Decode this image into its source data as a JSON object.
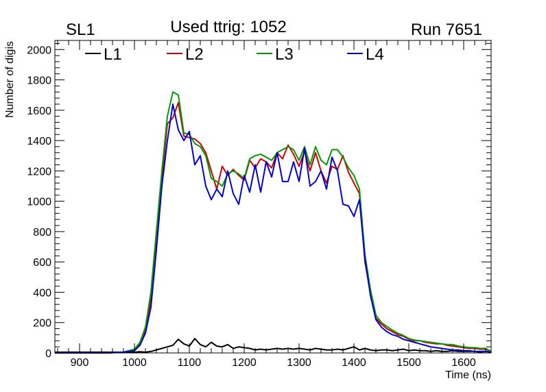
{
  "header": {
    "left": "SL1",
    "center": "Used ttrig: 1052",
    "right": "Run 7651"
  },
  "chart_data": {
    "type": "line",
    "xlabel": "Time (ns)",
    "ylabel": "Number of digis",
    "xlim": [
      855,
      1650
    ],
    "ylim": [
      0,
      2060
    ],
    "x_ticks": [
      900,
      1000,
      1100,
      1200,
      1300,
      1400,
      1500,
      1600
    ],
    "y_ticks": [
      0,
      200,
      400,
      600,
      800,
      1000,
      1200,
      1400,
      1600,
      1800,
      2000
    ],
    "legend": "top",
    "grid": false,
    "series": [
      {
        "name": "L1",
        "color": "#000000",
        "points": [
          [
            855,
            5
          ],
          [
            900,
            5
          ],
          [
            950,
            5
          ],
          [
            1000,
            5
          ],
          [
            1010,
            8
          ],
          [
            1020,
            5
          ],
          [
            1030,
            10
          ],
          [
            1040,
            20
          ],
          [
            1050,
            30
          ],
          [
            1060,
            40
          ],
          [
            1070,
            50
          ],
          [
            1080,
            90
          ],
          [
            1090,
            60
          ],
          [
            1100,
            45
          ],
          [
            1110,
            95
          ],
          [
            1120,
            55
          ],
          [
            1130,
            40
          ],
          [
            1140,
            70
          ],
          [
            1150,
            45
          ],
          [
            1160,
            40
          ],
          [
            1170,
            55
          ],
          [
            1180,
            30
          ],
          [
            1190,
            40
          ],
          [
            1200,
            35
          ],
          [
            1210,
            30
          ],
          [
            1220,
            20
          ],
          [
            1230,
            25
          ],
          [
            1240,
            20
          ],
          [
            1250,
            25
          ],
          [
            1260,
            30
          ],
          [
            1270,
            25
          ],
          [
            1280,
            30
          ],
          [
            1290,
            25
          ],
          [
            1300,
            30
          ],
          [
            1310,
            25
          ],
          [
            1320,
            20
          ],
          [
            1330,
            30
          ],
          [
            1340,
            25
          ],
          [
            1350,
            20
          ],
          [
            1360,
            20
          ],
          [
            1370,
            25
          ],
          [
            1380,
            20
          ],
          [
            1390,
            30
          ],
          [
            1400,
            40
          ],
          [
            1410,
            20
          ],
          [
            1420,
            30
          ],
          [
            1430,
            20
          ],
          [
            1440,
            15
          ],
          [
            1450,
            20
          ],
          [
            1460,
            20
          ],
          [
            1470,
            15
          ],
          [
            1480,
            20
          ],
          [
            1490,
            25
          ],
          [
            1500,
            15
          ],
          [
            1510,
            20
          ],
          [
            1520,
            15
          ],
          [
            1530,
            15
          ],
          [
            1540,
            10
          ],
          [
            1550,
            15
          ],
          [
            1560,
            10
          ],
          [
            1570,
            10
          ],
          [
            1580,
            15
          ],
          [
            1590,
            10
          ],
          [
            1600,
            10
          ],
          [
            1610,
            10
          ],
          [
            1620,
            10
          ],
          [
            1630,
            5
          ],
          [
            1640,
            10
          ],
          [
            1650,
            5
          ]
        ]
      },
      {
        "name": "L2",
        "color": "#cc0000",
        "points": [
          [
            855,
            0
          ],
          [
            900,
            0
          ],
          [
            950,
            0
          ],
          [
            980,
            5
          ],
          [
            1000,
            20
          ],
          [
            1010,
            60
          ],
          [
            1020,
            150
          ],
          [
            1030,
            350
          ],
          [
            1040,
            750
          ],
          [
            1050,
            1150
          ],
          [
            1060,
            1510
          ],
          [
            1070,
            1550
          ],
          [
            1080,
            1650
          ],
          [
            1090,
            1430
          ],
          [
            1100,
            1420
          ],
          [
            1110,
            1410
          ],
          [
            1120,
            1380
          ],
          [
            1130,
            1320
          ],
          [
            1140,
            1200
          ],
          [
            1150,
            1080
          ],
          [
            1160,
            1230
          ],
          [
            1170,
            1170
          ],
          [
            1180,
            1210
          ],
          [
            1190,
            1170
          ],
          [
            1200,
            1140
          ],
          [
            1210,
            1270
          ],
          [
            1220,
            1220
          ],
          [
            1230,
            1280
          ],
          [
            1240,
            1260
          ],
          [
            1250,
            1220
          ],
          [
            1260,
            1320
          ],
          [
            1270,
            1280
          ],
          [
            1280,
            1370
          ],
          [
            1290,
            1310
          ],
          [
            1300,
            1230
          ],
          [
            1310,
            1330
          ],
          [
            1320,
            1200
          ],
          [
            1330,
            1320
          ],
          [
            1340,
            1200
          ],
          [
            1350,
            1120
          ],
          [
            1360,
            1230
          ],
          [
            1370,
            1210
          ],
          [
            1380,
            1300
          ],
          [
            1390,
            1190
          ],
          [
            1400,
            1120
          ],
          [
            1410,
            1050
          ],
          [
            1420,
            600
          ],
          [
            1430,
            400
          ],
          [
            1440,
            230
          ],
          [
            1450,
            190
          ],
          [
            1460,
            160
          ],
          [
            1470,
            140
          ],
          [
            1480,
            120
          ],
          [
            1490,
            110
          ],
          [
            1500,
            90
          ],
          [
            1510,
            80
          ],
          [
            1520,
            80
          ],
          [
            1530,
            70
          ],
          [
            1540,
            65
          ],
          [
            1550,
            60
          ],
          [
            1560,
            60
          ],
          [
            1570,
            50
          ],
          [
            1580,
            45
          ],
          [
            1590,
            40
          ],
          [
            1600,
            35
          ],
          [
            1610,
            30
          ],
          [
            1620,
            30
          ],
          [
            1630,
            25
          ],
          [
            1640,
            25
          ],
          [
            1650,
            10
          ]
        ]
      },
      {
        "name": "L3",
        "color": "#009900",
        "points": [
          [
            855,
            0
          ],
          [
            900,
            0
          ],
          [
            950,
            0
          ],
          [
            980,
            5
          ],
          [
            1000,
            25
          ],
          [
            1010,
            70
          ],
          [
            1020,
            170
          ],
          [
            1030,
            400
          ],
          [
            1040,
            800
          ],
          [
            1050,
            1200
          ],
          [
            1060,
            1560
          ],
          [
            1070,
            1720
          ],
          [
            1080,
            1700
          ],
          [
            1090,
            1450
          ],
          [
            1100,
            1440
          ],
          [
            1110,
            1380
          ],
          [
            1120,
            1360
          ],
          [
            1130,
            1300
          ],
          [
            1140,
            1150
          ],
          [
            1150,
            1130
          ],
          [
            1160,
            1100
          ],
          [
            1170,
            1180
          ],
          [
            1180,
            1200
          ],
          [
            1190,
            1180
          ],
          [
            1200,
            1150
          ],
          [
            1210,
            1280
          ],
          [
            1220,
            1300
          ],
          [
            1230,
            1310
          ],
          [
            1240,
            1290
          ],
          [
            1250,
            1270
          ],
          [
            1260,
            1320
          ],
          [
            1270,
            1340
          ],
          [
            1280,
            1360
          ],
          [
            1290,
            1340
          ],
          [
            1300,
            1270
          ],
          [
            1310,
            1360
          ],
          [
            1320,
            1240
          ],
          [
            1330,
            1360
          ],
          [
            1340,
            1270
          ],
          [
            1350,
            1240
          ],
          [
            1360,
            1340
          ],
          [
            1370,
            1340
          ],
          [
            1380,
            1290
          ],
          [
            1390,
            1220
          ],
          [
            1400,
            1170
          ],
          [
            1410,
            1080
          ],
          [
            1420,
            650
          ],
          [
            1430,
            420
          ],
          [
            1440,
            250
          ],
          [
            1450,
            200
          ],
          [
            1460,
            175
          ],
          [
            1470,
            150
          ],
          [
            1480,
            130
          ],
          [
            1490,
            115
          ],
          [
            1500,
            95
          ],
          [
            1510,
            85
          ],
          [
            1520,
            80
          ],
          [
            1530,
            75
          ],
          [
            1540,
            70
          ],
          [
            1550,
            65
          ],
          [
            1560,
            60
          ],
          [
            1570,
            55
          ],
          [
            1580,
            55
          ],
          [
            1590,
            45
          ],
          [
            1600,
            40
          ],
          [
            1610,
            35
          ],
          [
            1620,
            35
          ],
          [
            1630,
            30
          ],
          [
            1640,
            30
          ],
          [
            1650,
            10
          ]
        ]
      },
      {
        "name": "L4",
        "color": "#0000cc",
        "points": [
          [
            855,
            0
          ],
          [
            900,
            0
          ],
          [
            950,
            0
          ],
          [
            980,
            5
          ],
          [
            1000,
            15
          ],
          [
            1010,
            50
          ],
          [
            1020,
            130
          ],
          [
            1030,
            300
          ],
          [
            1040,
            680
          ],
          [
            1050,
            1100
          ],
          [
            1060,
            1400
          ],
          [
            1070,
            1640
          ],
          [
            1080,
            1470
          ],
          [
            1090,
            1400
          ],
          [
            1100,
            1460
          ],
          [
            1110,
            1240
          ],
          [
            1120,
            1300
          ],
          [
            1130,
            1100
          ],
          [
            1140,
            1010
          ],
          [
            1150,
            1080
          ],
          [
            1160,
            1030
          ],
          [
            1170,
            1200
          ],
          [
            1180,
            1050
          ],
          [
            1190,
            980
          ],
          [
            1200,
            1170
          ],
          [
            1210,
            1060
          ],
          [
            1220,
            1240
          ],
          [
            1230,
            1060
          ],
          [
            1240,
            1260
          ],
          [
            1250,
            1160
          ],
          [
            1260,
            1320
          ],
          [
            1270,
            1130
          ],
          [
            1280,
            1130
          ],
          [
            1290,
            1260
          ],
          [
            1300,
            1130
          ],
          [
            1310,
            1350
          ],
          [
            1320,
            1100
          ],
          [
            1330,
            1130
          ],
          [
            1340,
            1200
          ],
          [
            1350,
            1080
          ],
          [
            1360,
            1290
          ],
          [
            1370,
            1200
          ],
          [
            1380,
            980
          ],
          [
            1390,
            970
          ],
          [
            1400,
            900
          ],
          [
            1410,
            1010
          ],
          [
            1420,
            620
          ],
          [
            1430,
            380
          ],
          [
            1440,
            220
          ],
          [
            1450,
            170
          ],
          [
            1460,
            140
          ],
          [
            1470,
            120
          ],
          [
            1480,
            110
          ],
          [
            1490,
            90
          ],
          [
            1500,
            80
          ],
          [
            1510,
            70
          ],
          [
            1520,
            60
          ],
          [
            1530,
            50
          ],
          [
            1540,
            40
          ],
          [
            1550,
            35
          ],
          [
            1560,
            30
          ],
          [
            1570,
            25
          ],
          [
            1580,
            20
          ],
          [
            1590,
            20
          ],
          [
            1600,
            15
          ],
          [
            1610,
            15
          ],
          [
            1620,
            10
          ],
          [
            1630,
            10
          ],
          [
            1640,
            10
          ],
          [
            1650,
            5
          ]
        ]
      }
    ]
  }
}
